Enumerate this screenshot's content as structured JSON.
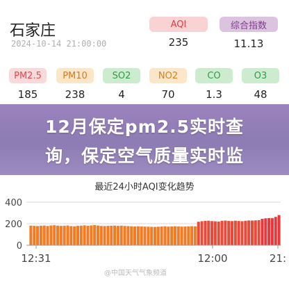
{
  "header": {
    "city": "石家庄",
    "timestamp": "2024-10-14 21:00:00",
    "aqi_label": "AQI",
    "aqi_value": "235",
    "index_label": "综合指数",
    "index_value": "11.13"
  },
  "pollutants": [
    {
      "label": "PM2.5",
      "value": "185",
      "color": "#e8484b",
      "bg": "#f9d9da"
    },
    {
      "label": "PM10",
      "value": "238",
      "color": "#d8751f",
      "bg": "#fbe7c8"
    },
    {
      "label": "SO2",
      "value": "4",
      "color": "#2f9a4a",
      "bg": "#cdeccf"
    },
    {
      "label": "NO2",
      "value": "70",
      "color": "#d6801f",
      "bg": "#fbe7c8"
    },
    {
      "label": "CO",
      "value": "1.3",
      "color": "#2f9a4a",
      "bg": "#cdeccf"
    },
    {
      "label": "O3",
      "value": "48",
      "color": "#2f9a4a",
      "bg": "#cdeccf"
    }
  ],
  "overlay": {
    "line1": "12月保定pm2.5实时查",
    "line2": "询，保定空气质量实时监"
  },
  "chart_data": {
    "type": "bar",
    "title": "最近24小时AQI变化趋势",
    "ylim": [
      0,
      400
    ],
    "yticks": [
      "400",
      "200",
      "0"
    ],
    "xtick_labels": [
      "12:31",
      "12:00",
      "21:"
    ],
    "values": [
      182,
      180,
      178,
      181,
      183,
      179,
      184,
      186,
      182,
      180,
      181,
      183,
      178,
      176,
      180,
      182,
      185,
      181,
      184,
      187,
      183,
      179,
      178,
      180,
      181,
      183,
      180,
      182,
      179,
      178,
      176,
      174,
      176,
      175,
      173,
      172,
      171,
      170,
      172,
      174,
      176,
      173,
      174,
      176,
      175,
      173,
      174,
      175,
      177,
      176,
      218,
      223,
      226,
      228,
      224,
      222,
      220,
      227,
      229,
      226,
      224,
      228,
      225,
      223,
      227,
      230,
      229,
      231,
      233,
      245,
      250,
      252,
      251,
      263,
      280
    ],
    "bar_colors": {
      "high": "#e8383b",
      "mid": "#f47a24"
    },
    "grid": true
  },
  "watermark": "@中国天气气象频道"
}
